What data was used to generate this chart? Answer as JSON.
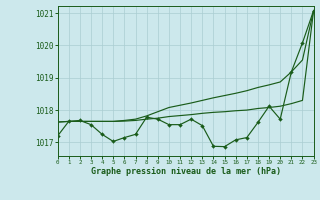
{
  "title": "Graphe pression niveau de la mer (hPa)",
  "hours": [
    0,
    1,
    2,
    3,
    4,
    5,
    6,
    7,
    8,
    9,
    10,
    11,
    12,
    13,
    14,
    15,
    16,
    17,
    18,
    19,
    20,
    21,
    22,
    23
  ],
  "ylim": [
    1016.58,
    1021.22
  ],
  "xlim": [
    0,
    23
  ],
  "yticks": [
    1017,
    1018,
    1019,
    1020,
    1021
  ],
  "bg_color": "#cce8ec",
  "grid_color": "#aacdd2",
  "lc": "#1a5c1a",
  "line_wavy": [
    1017.2,
    1017.65,
    1017.68,
    1017.55,
    1017.25,
    1017.03,
    1017.15,
    1017.25,
    1017.78,
    1017.72,
    1017.55,
    1017.55,
    1017.72,
    1017.52,
    1016.88,
    1016.87,
    1017.08,
    1017.15,
    1017.62,
    1018.12,
    1017.72,
    1019.18,
    1020.08,
    1021.08
  ],
  "line_upper": [
    1017.63,
    1017.65,
    1017.65,
    1017.65,
    1017.65,
    1017.65,
    1017.68,
    1017.72,
    1017.82,
    1017.95,
    1018.08,
    1018.15,
    1018.22,
    1018.3,
    1018.38,
    1018.45,
    1018.52,
    1018.6,
    1018.7,
    1018.78,
    1018.87,
    1019.18,
    1019.55,
    1021.08
  ],
  "line_lower": [
    1017.63,
    1017.65,
    1017.65,
    1017.65,
    1017.65,
    1017.65,
    1017.66,
    1017.68,
    1017.72,
    1017.75,
    1017.8,
    1017.83,
    1017.86,
    1017.9,
    1017.93,
    1017.95,
    1017.98,
    1018.0,
    1018.05,
    1018.08,
    1018.12,
    1018.2,
    1018.3,
    1021.08
  ]
}
